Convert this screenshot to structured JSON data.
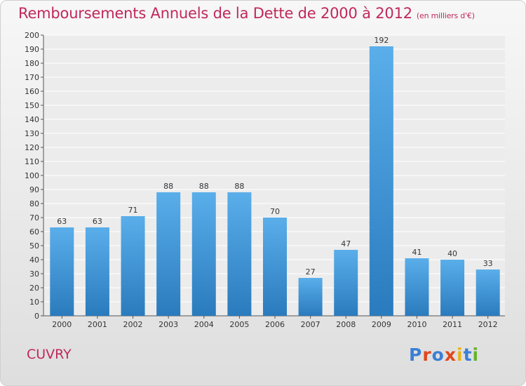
{
  "title": "Remboursements Annuels de la Dette de 2000 à 2012",
  "unit": "(en milliers d'€)",
  "commune": "CUVRY",
  "logo": {
    "text": "Proxiti",
    "letters": [
      "P",
      "r",
      "o",
      "x",
      "i",
      "t",
      "i"
    ],
    "colors": [
      "#3b7fd6",
      "#e0471b",
      "#3b7fd6",
      "#e0471b",
      "#e8b51a",
      "#3b7fd6",
      "#64b32e"
    ]
  },
  "colors": {
    "bar_top": "#5aaeea",
    "bar_bottom": "#2a7bbd",
    "title": "#c0285a"
  },
  "chart_data": {
    "type": "bar",
    "title": "Remboursements Annuels de la Dette de 2000 à 2012",
    "unit": "(en milliers d'€)",
    "categories": [
      "2000",
      "2001",
      "2002",
      "2003",
      "2004",
      "2005",
      "2006",
      "2007",
      "2008",
      "2009",
      "2010",
      "2011",
      "2012"
    ],
    "values": [
      63,
      63,
      71,
      88,
      88,
      88,
      70,
      27,
      47,
      192,
      41,
      40,
      33
    ],
    "ylim": [
      0,
      200
    ],
    "yticks": [
      0,
      10,
      20,
      30,
      40,
      50,
      60,
      70,
      80,
      90,
      100,
      110,
      120,
      130,
      140,
      150,
      160,
      170,
      180,
      190,
      200
    ],
    "grid": true,
    "legend": "none"
  }
}
